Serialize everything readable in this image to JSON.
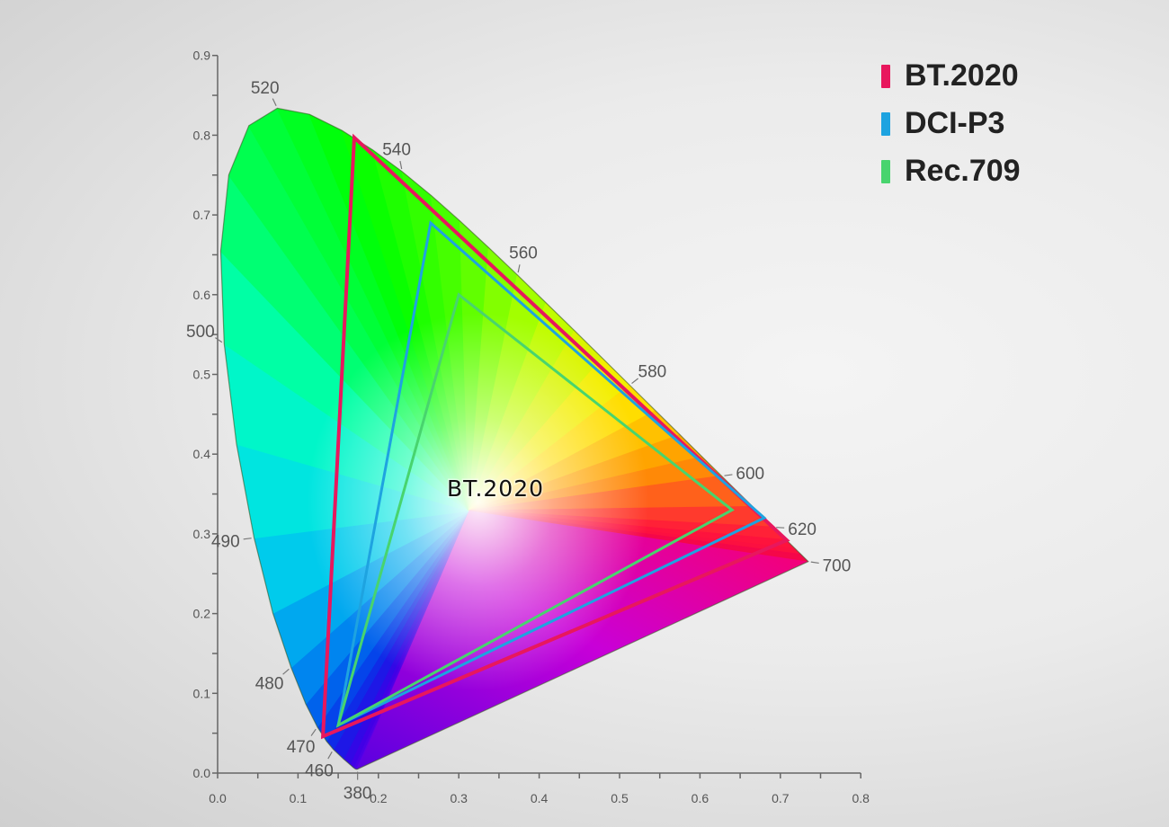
{
  "chart_data": {
    "type": "scatter",
    "title": "",
    "xlabel": "",
    "ylabel": "",
    "xlim": [
      0.0,
      0.8
    ],
    "ylim": [
      0.0,
      0.9
    ],
    "x_ticks": [
      "0.0",
      "0.1",
      "0.2",
      "0.3",
      "0.4",
      "0.5",
      "0.6",
      "0.7",
      "0.8"
    ],
    "y_ticks": [
      "0.0",
      "0.1",
      "0.2",
      "0.3",
      "0.4",
      "0.5",
      "0.6",
      "0.7",
      "0.8",
      "0.9"
    ],
    "grid": false,
    "legend_position": "top-right",
    "center_label": "BT.2020",
    "spectral_locus": [
      [
        380,
        0.1741,
        0.005
      ],
      [
        400,
        0.1733,
        0.0048
      ],
      [
        420,
        0.1714,
        0.0051
      ],
      [
        430,
        0.1689,
        0.0069
      ],
      [
        440,
        0.1644,
        0.0109
      ],
      [
        450,
        0.1566,
        0.0177
      ],
      [
        460,
        0.144,
        0.0297
      ],
      [
        465,
        0.1355,
        0.0399
      ],
      [
        470,
        0.1241,
        0.0578
      ],
      [
        475,
        0.1096,
        0.0868
      ],
      [
        480,
        0.0913,
        0.1327
      ],
      [
        485,
        0.0687,
        0.2007
      ],
      [
        490,
        0.0454,
        0.295
      ],
      [
        495,
        0.0235,
        0.4127
      ],
      [
        500,
        0.0082,
        0.5384
      ],
      [
        505,
        0.0039,
        0.6548
      ],
      [
        510,
        0.0139,
        0.7502
      ],
      [
        515,
        0.0389,
        0.812
      ],
      [
        520,
        0.0743,
        0.8338
      ],
      [
        525,
        0.1142,
        0.8262
      ],
      [
        530,
        0.1547,
        0.8059
      ],
      [
        535,
        0.1929,
        0.7816
      ],
      [
        540,
        0.2296,
        0.7543
      ],
      [
        545,
        0.2658,
        0.7243
      ],
      [
        550,
        0.3016,
        0.6923
      ],
      [
        555,
        0.3373,
        0.6589
      ],
      [
        560,
        0.3731,
        0.6245
      ],
      [
        565,
        0.4087,
        0.5896
      ],
      [
        570,
        0.4441,
        0.5547
      ],
      [
        575,
        0.4788,
        0.5202
      ],
      [
        580,
        0.5125,
        0.4866
      ],
      [
        585,
        0.5448,
        0.4544
      ],
      [
        590,
        0.5752,
        0.4242
      ],
      [
        595,
        0.6029,
        0.3965
      ],
      [
        600,
        0.627,
        0.3725
      ],
      [
        610,
        0.6658,
        0.334
      ],
      [
        620,
        0.6915,
        0.3083
      ],
      [
        630,
        0.7079,
        0.292
      ],
      [
        640,
        0.719,
        0.2809
      ],
      [
        650,
        0.726,
        0.274
      ],
      [
        700,
        0.7347,
        0.2653
      ]
    ],
    "wavelength_labels": [
      {
        "nm": 380,
        "text": "380"
      },
      {
        "nm": 460,
        "text": "460"
      },
      {
        "nm": 470,
        "text": "470"
      },
      {
        "nm": 480,
        "text": "480"
      },
      {
        "nm": 490,
        "text": "490"
      },
      {
        "nm": 500,
        "text": "500"
      },
      {
        "nm": 520,
        "text": "520"
      },
      {
        "nm": 540,
        "text": "540"
      },
      {
        "nm": 560,
        "text": "560"
      },
      {
        "nm": 580,
        "text": "580"
      },
      {
        "nm": 600,
        "text": "600"
      },
      {
        "nm": 620,
        "text": "620"
      },
      {
        "nm": 700,
        "text": "700"
      }
    ],
    "series": [
      {
        "name": "BT.2020",
        "color": "#e8175d",
        "points": [
          [
            0.708,
            0.292
          ],
          [
            0.17,
            0.797
          ],
          [
            0.131,
            0.046
          ]
        ]
      },
      {
        "name": "DCI-P3",
        "color": "#1ea3e0",
        "points": [
          [
            0.68,
            0.32
          ],
          [
            0.265,
            0.69
          ],
          [
            0.15,
            0.06
          ]
        ]
      },
      {
        "name": "Rec.709",
        "color": "#48d46e",
        "points": [
          [
            0.64,
            0.33
          ],
          [
            0.3,
            0.6
          ],
          [
            0.15,
            0.06
          ]
        ]
      }
    ]
  },
  "legend": [
    {
      "label": "BT.2020",
      "color": "#e8175d"
    },
    {
      "label": "DCI-P3",
      "color": "#1ea3e0"
    },
    {
      "label": "Rec.709",
      "color": "#48d46e"
    }
  ]
}
